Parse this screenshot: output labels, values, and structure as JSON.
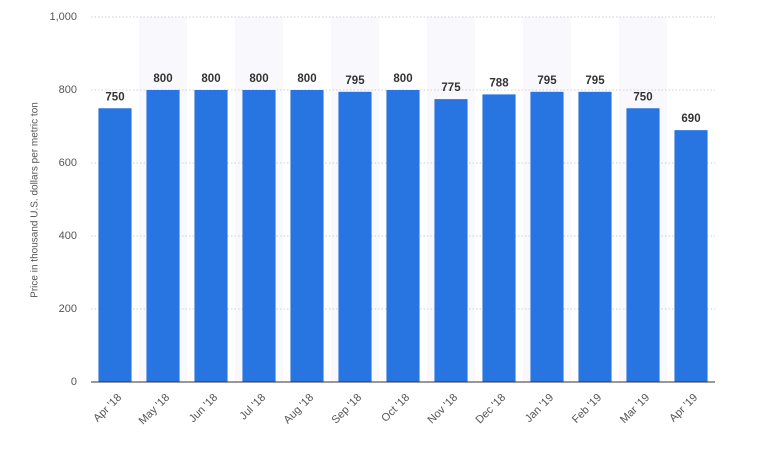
{
  "chart_data": {
    "type": "bar",
    "y_label": "Price in thousand U.S. dollars per metric ton",
    "categories": [
      "Apr '18",
      "May '18",
      "Jun '18",
      "Jul '18",
      "Aug '18",
      "Sep '18",
      "Oct '18",
      "Nov '18",
      "Dec '18",
      "Jan '19",
      "Feb '19",
      "Mar '19",
      "Apr '19"
    ],
    "values": [
      750,
      800,
      800,
      800,
      800,
      795,
      800,
      775,
      788,
      795,
      795,
      750,
      690
    ],
    "color": "#2874e1",
    "ylim": [
      0,
      1000
    ],
    "yticks": [
      0,
      200,
      400,
      600,
      800,
      {
        "value": 1000,
        "label": "1,000"
      }
    ],
    "grid": true
  }
}
